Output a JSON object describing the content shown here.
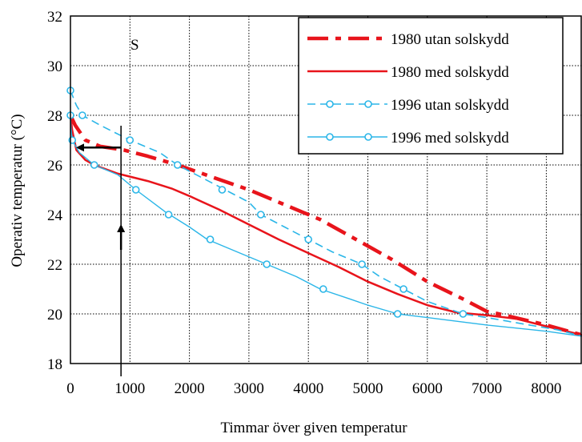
{
  "chart_data": {
    "type": "line",
    "xlabel": "Timmar över given temperatur",
    "ylabel": "Operativ temperatur (°C)",
    "xlim": [
      0,
      8600
    ],
    "ylim": [
      18,
      32
    ],
    "x_ticks": [
      0,
      1000,
      2000,
      3000,
      4000,
      5000,
      6000,
      7000,
      8000
    ],
    "y_ticks": [
      18,
      20,
      22,
      24,
      26,
      28,
      30,
      32
    ],
    "grid": "dotted",
    "legend_position": "top-right",
    "annotation": "S",
    "series": [
      {
        "name": "1980 utan solskydd",
        "color": "#e8141b",
        "style": "dashdot-thick",
        "points": [
          [
            0,
            28.0
          ],
          [
            80,
            27.6
          ],
          [
            250,
            27.0
          ],
          [
            500,
            26.75
          ],
          [
            900,
            26.6
          ],
          [
            1300,
            26.35
          ],
          [
            1800,
            26.0
          ],
          [
            2400,
            25.5
          ],
          [
            3000,
            25.0
          ],
          [
            3600,
            24.4
          ],
          [
            4200,
            23.8
          ],
          [
            4800,
            23.0
          ],
          [
            5400,
            22.2
          ],
          [
            6000,
            21.3
          ],
          [
            6600,
            20.6
          ],
          [
            7000,
            20.1
          ],
          [
            7300,
            19.95
          ],
          [
            8000,
            19.55
          ],
          [
            8600,
            19.15
          ]
        ]
      },
      {
        "name": "1980 med solskydd",
        "color": "#e8141b",
        "style": "solid",
        "points": [
          [
            0,
            28.0
          ],
          [
            30,
            27.4
          ],
          [
            100,
            26.6
          ],
          [
            250,
            26.2
          ],
          [
            400,
            26.0
          ],
          [
            800,
            25.65
          ],
          [
            1300,
            25.35
          ],
          [
            1700,
            25.05
          ],
          [
            2000,
            24.75
          ],
          [
            2500,
            24.2
          ],
          [
            3000,
            23.6
          ],
          [
            3500,
            23.0
          ],
          [
            4000,
            22.45
          ],
          [
            4500,
            21.9
          ],
          [
            5000,
            21.3
          ],
          [
            5500,
            20.8
          ],
          [
            6000,
            20.35
          ],
          [
            6500,
            20.05
          ],
          [
            7000,
            19.95
          ],
          [
            7500,
            19.8
          ],
          [
            8000,
            19.5
          ],
          [
            8600,
            19.15
          ]
        ]
      },
      {
        "name": "1996 utan solskydd",
        "color": "#2bb6e8",
        "style": "dashed",
        "points": [
          [
            0,
            29.0
          ],
          [
            100,
            28.4
          ],
          [
            200,
            28.0
          ],
          [
            500,
            27.6
          ],
          [
            1000,
            27.0
          ],
          [
            1500,
            26.5
          ],
          [
            1800,
            26.0
          ],
          [
            2200,
            25.5
          ],
          [
            2600,
            25.0
          ],
          [
            3000,
            24.5
          ],
          [
            3200,
            24.0
          ],
          [
            3600,
            23.5
          ],
          [
            4000,
            23.0
          ],
          [
            4400,
            22.5
          ],
          [
            4900,
            22.0
          ],
          [
            5200,
            21.5
          ],
          [
            5600,
            21.0
          ],
          [
            6000,
            20.5
          ],
          [
            6600,
            20.0
          ],
          [
            7000,
            19.85
          ],
          [
            7600,
            19.6
          ],
          [
            8200,
            19.35
          ],
          [
            8600,
            19.1
          ]
        ],
        "markers": [
          [
            0,
            29.0
          ],
          [
            200,
            28.0
          ],
          [
            1000,
            27.0
          ],
          [
            1800,
            26.0
          ],
          [
            2550,
            25.0
          ],
          [
            3200,
            24.0
          ],
          [
            4000,
            23.0
          ],
          [
            4900,
            22.0
          ],
          [
            5600,
            21.0
          ],
          [
            6600,
            20.0
          ]
        ]
      },
      {
        "name": "1996 med solskydd",
        "color": "#2bb6e8",
        "style": "solid-thin",
        "points": [
          [
            0,
            28.0
          ],
          [
            10,
            27.5
          ],
          [
            30,
            27.0
          ],
          [
            150,
            26.5
          ],
          [
            400,
            26.0
          ],
          [
            800,
            25.6
          ],
          [
            1100,
            25.0
          ],
          [
            1600,
            24.1
          ],
          [
            2000,
            23.5
          ],
          [
            2300,
            23.0
          ],
          [
            2800,
            22.5
          ],
          [
            3300,
            22.0
          ],
          [
            3800,
            21.5
          ],
          [
            4200,
            21.0
          ],
          [
            4700,
            20.6
          ],
          [
            5000,
            20.35
          ],
          [
            5500,
            20.0
          ],
          [
            6000,
            19.85
          ],
          [
            7000,
            19.55
          ],
          [
            8000,
            19.3
          ],
          [
            8600,
            19.1
          ]
        ],
        "markers": [
          [
            0,
            28.0
          ],
          [
            30,
            27.0
          ],
          [
            400,
            26.0
          ],
          [
            1100,
            25.0
          ],
          [
            1650,
            24.0
          ],
          [
            2350,
            23.0
          ],
          [
            3300,
            22.0
          ],
          [
            4250,
            21.0
          ],
          [
            5500,
            20.0
          ]
        ]
      }
    ],
    "guide_vertical_x": 850,
    "guide_horizontal_y": 26.7
  }
}
